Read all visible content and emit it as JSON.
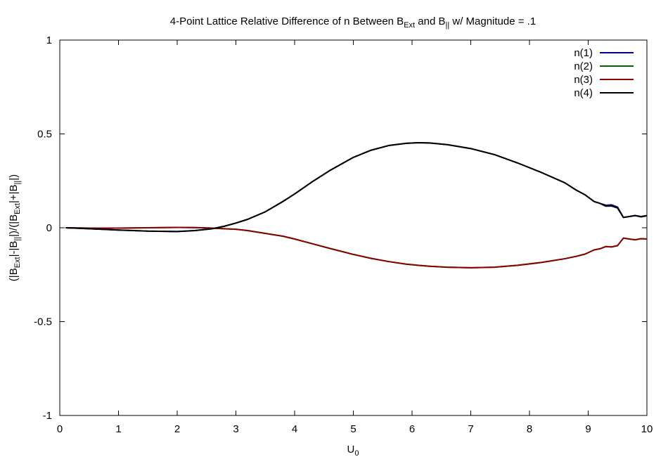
{
  "chart_data": {
    "type": "line",
    "title": {
      "prefix": "4-Point Lattice Relative Difference of n Between B",
      "sub1": "Ext",
      "middle": " and B",
      "sub2": "||",
      "suffix": " w/ Magnitude = .1"
    },
    "xlabel": {
      "main": "U",
      "sub": "0"
    },
    "ylabel": {
      "p1": "(|B",
      "s1": "Ext",
      "p2": "|-|B",
      "s2": "||",
      "p3": "|)/(|B",
      "s3": "Ext",
      "p4": "|+|B",
      "s4": "||",
      "p5": "|)"
    },
    "xlim": [
      0,
      10
    ],
    "ylim": [
      -1,
      1
    ],
    "x_ticks": [
      0,
      1,
      2,
      3,
      4,
      5,
      6,
      7,
      8,
      9,
      10
    ],
    "x_tick_labels": [
      "0",
      "1",
      "2",
      "3",
      "4",
      "5",
      "6",
      "7",
      "8",
      "9",
      "10"
    ],
    "y_ticks": [
      -1,
      -0.5,
      0,
      0.5,
      1
    ],
    "y_tick_labels": [
      "-1",
      "-0.5",
      "0",
      "0.5",
      "1"
    ],
    "grid": false,
    "legend_position": "top-right",
    "x": [
      0.1,
      0.5,
      1.0,
      1.5,
      2.0,
      2.3,
      2.6,
      2.8,
      3.0,
      3.2,
      3.5,
      3.8,
      4.0,
      4.3,
      4.6,
      5.0,
      5.3,
      5.6,
      5.9,
      6.1,
      6.3,
      6.6,
      7.0,
      7.4,
      7.8,
      8.2,
      8.6,
      8.8,
      8.95,
      9.1,
      9.2,
      9.3,
      9.4,
      9.5,
      9.6,
      9.7,
      9.8,
      9.9,
      10.0
    ],
    "series": [
      {
        "name": "n(1)",
        "color": "#00008b",
        "values": [
          0.0,
          -0.005,
          -0.012,
          -0.018,
          -0.02,
          -0.015,
          -0.005,
          0.008,
          0.025,
          0.045,
          0.085,
          0.14,
          0.18,
          0.245,
          0.305,
          0.375,
          0.413,
          0.438,
          0.45,
          0.453,
          0.452,
          0.443,
          0.422,
          0.39,
          0.345,
          0.295,
          0.24,
          0.2,
          0.175,
          0.14,
          0.13,
          0.12,
          0.122,
          0.11,
          0.055,
          0.06,
          0.065,
          0.06,
          0.065
        ]
      },
      {
        "name": "n(2)",
        "color": "#006400",
        "values": [
          0.0,
          -0.002,
          -0.002,
          0.0,
          0.002,
          0.001,
          -0.002,
          -0.005,
          -0.008,
          -0.015,
          -0.03,
          -0.045,
          -0.06,
          -0.085,
          -0.11,
          -0.142,
          -0.163,
          -0.18,
          -0.194,
          -0.2,
          -0.205,
          -0.21,
          -0.213,
          -0.21,
          -0.2,
          -0.185,
          -0.165,
          -0.152,
          -0.14,
          -0.118,
          -0.112,
          -0.1,
          -0.102,
          -0.095,
          -0.055,
          -0.06,
          -0.064,
          -0.058,
          -0.06
        ]
      },
      {
        "name": "n(3)",
        "color": "#8b0000",
        "values": [
          0.0,
          -0.002,
          -0.002,
          0.0,
          0.002,
          0.001,
          -0.002,
          -0.005,
          -0.008,
          -0.015,
          -0.03,
          -0.045,
          -0.06,
          -0.085,
          -0.11,
          -0.142,
          -0.163,
          -0.18,
          -0.194,
          -0.2,
          -0.205,
          -0.21,
          -0.213,
          -0.21,
          -0.2,
          -0.185,
          -0.165,
          -0.152,
          -0.14,
          -0.118,
          -0.112,
          -0.1,
          -0.102,
          -0.095,
          -0.055,
          -0.06,
          -0.064,
          -0.058,
          -0.06
        ]
      },
      {
        "name": "n(4)",
        "color": "#000000",
        "values": [
          0.0,
          -0.005,
          -0.012,
          -0.018,
          -0.02,
          -0.015,
          -0.005,
          0.008,
          0.025,
          0.045,
          0.085,
          0.14,
          0.18,
          0.245,
          0.305,
          0.375,
          0.413,
          0.438,
          0.45,
          0.453,
          0.452,
          0.443,
          0.422,
          0.39,
          0.345,
          0.295,
          0.24,
          0.2,
          0.175,
          0.14,
          0.13,
          0.115,
          0.116,
          0.105,
          0.055,
          0.06,
          0.065,
          0.058,
          0.064
        ]
      }
    ]
  }
}
